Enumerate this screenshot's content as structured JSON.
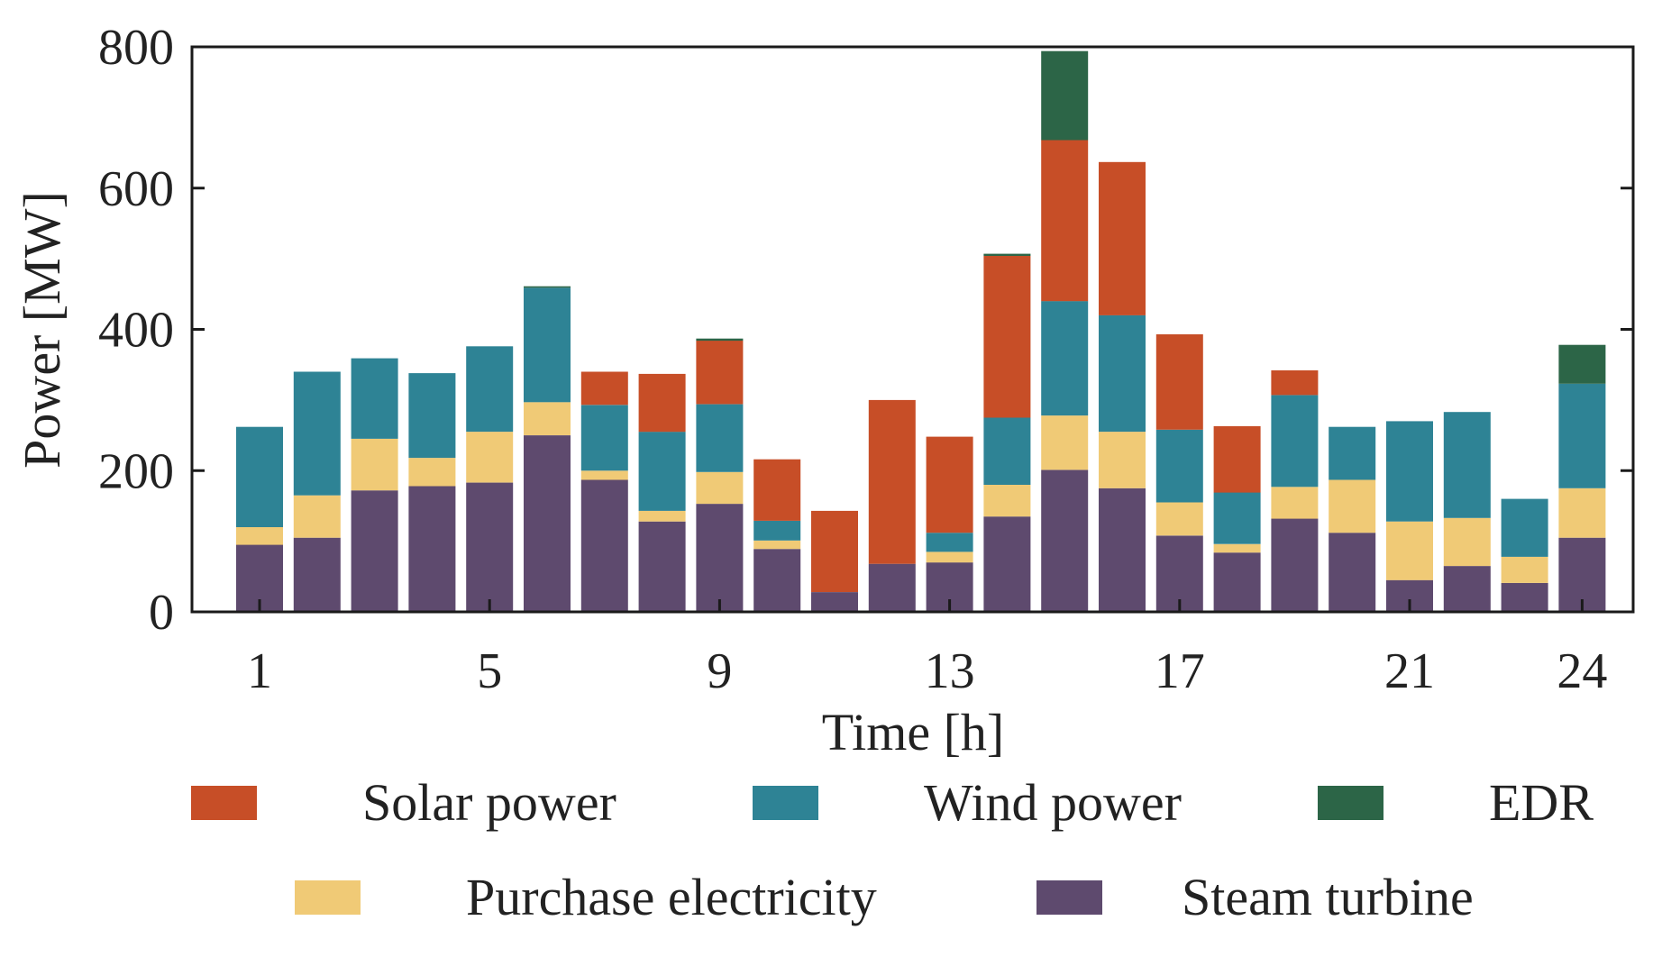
{
  "chart_data": {
    "type": "bar",
    "stacked": true,
    "title": "",
    "xlabel": "Time [h]",
    "ylabel": "Power [MW]",
    "ylim": [
      0,
      800
    ],
    "yticks": [
      "0",
      "200",
      "400",
      "600",
      "800"
    ],
    "xtick_hours": [
      1,
      5,
      9,
      13,
      17,
      21,
      24
    ],
    "xtick_labels": [
      "1",
      "5",
      "9",
      "13",
      "17",
      "21",
      "24"
    ],
    "categories": [
      1,
      2,
      3,
      4,
      5,
      6,
      7,
      8,
      9,
      10,
      11,
      12,
      13,
      14,
      15,
      16,
      17,
      18,
      19,
      20,
      21,
      22,
      23,
      24
    ],
    "series": [
      {
        "name": "Steam turbine",
        "color": "#5E4A6E",
        "values": [
          95,
          105,
          172,
          178,
          183,
          250,
          187,
          128,
          153,
          89,
          28,
          68,
          70,
          135,
          201,
          175,
          108,
          84,
          132,
          112,
          45,
          65,
          41,
          105
        ]
      },
      {
        "name": "Purchase electricity",
        "color": "#F0CA76",
        "values": [
          25,
          60,
          73,
          40,
          72,
          47,
          13,
          15,
          45,
          12,
          0,
          0,
          15,
          45,
          77,
          80,
          47,
          12,
          45,
          75,
          83,
          68,
          37,
          70
        ]
      },
      {
        "name": "Wind power",
        "color": "#2E8395",
        "values": [
          142,
          175,
          114,
          120,
          121,
          162,
          93,
          112,
          96,
          28,
          0,
          0,
          27,
          95,
          162,
          165,
          103,
          73,
          130,
          75,
          142,
          150,
          82,
          148
        ]
      },
      {
        "name": "Solar power",
        "color": "#C74E27",
        "values": [
          0,
          0,
          0,
          0,
          0,
          0,
          47,
          82,
          90,
          87,
          115,
          232,
          136,
          229,
          228,
          217,
          135,
          94,
          35,
          0,
          0,
          0,
          0,
          0
        ]
      },
      {
        "name": "EDR",
        "color": "#2C6547",
        "values": [
          0,
          0,
          0,
          0,
          0,
          2,
          0,
          0,
          3,
          0,
          0,
          0,
          0,
          3,
          126,
          0,
          0,
          0,
          0,
          0,
          0,
          0,
          0,
          55
        ]
      }
    ],
    "legend": {
      "rows": [
        [
          "Solar power",
          "Wind power",
          "EDR"
        ],
        [
          "Purchase electricity",
          "Steam turbine"
        ]
      ],
      "placement": "bottom"
    }
  }
}
